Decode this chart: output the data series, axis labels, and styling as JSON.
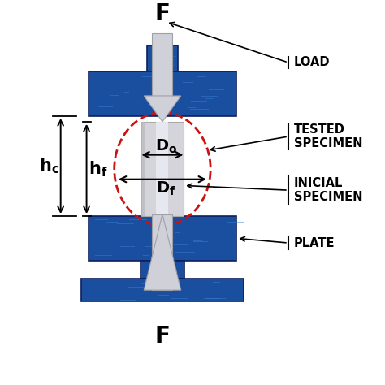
{
  "bg_color": "#ffffff",
  "blue_plate": "#1a4fa0",
  "blue_light": "#3a7fd4",
  "blue_dark": "#0d2060",
  "arrow_gray_light": "#d0d0d8",
  "arrow_gray_dark": "#a0a0a8",
  "specimen_gray": "#d4d4da",
  "specimen_highlight": "#eaeaf2",
  "dashed_red": "#cc1111",
  "label_load": "LOAD",
  "label_tested": "TESTED\nSPECIMEN",
  "label_inicial": "INICIAL\nSPECIMEN",
  "label_plate": "PLATE",
  "label_F": "F",
  "label_hc": "h_c",
  "label_hf": "h_f",
  "figsize": [
    4.74,
    4.74
  ],
  "dpi": 100
}
